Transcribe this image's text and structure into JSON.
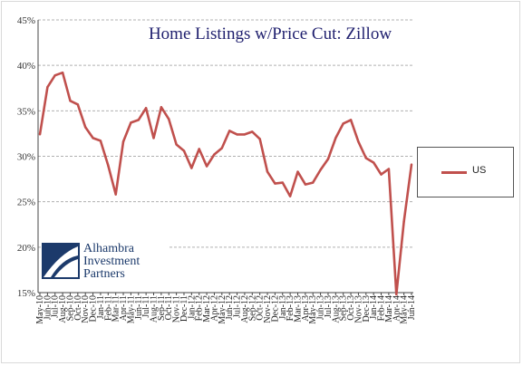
{
  "chart_data": {
    "type": "line",
    "title": "Home Listings w/Price Cut: Zillow",
    "ylim": [
      15,
      45
    ],
    "ytick_labels": [
      "45%",
      "40%",
      "35%",
      "30%",
      "25%",
      "20%",
      "15%"
    ],
    "ytick_values": [
      45,
      40,
      35,
      30,
      25,
      20,
      15
    ],
    "grid": "horizontal dashed",
    "legend_position": "right",
    "categories": [
      "May-10",
      "Jun-10",
      "Jul-10",
      "Aug-10",
      "Sep-10",
      "Oct-10",
      "Nov-10",
      "Dec-10",
      "Jan-11",
      "Feb-11",
      "Mar-11",
      "Apr-11",
      "May-11",
      "Jun-11",
      "Jul-11",
      "Aug-11",
      "Sep-11",
      "Oct-11",
      "Nov-11",
      "Dec-11",
      "Jan-12",
      "Feb-12",
      "Mar-12",
      "Apr-12",
      "May-12",
      "Jun-12",
      "Jul-12",
      "Aug-12",
      "Sep-12",
      "Oct-12",
      "Nov-12",
      "Dec-12",
      "Jan-13",
      "Feb-13",
      "Mar-13",
      "Apr-13",
      "May-13",
      "Jun-13",
      "Jul-13",
      "Aug-13",
      "Sep-13",
      "Oct-13",
      "Nov-13",
      "Dec-13",
      "Jan-14",
      "Feb-14",
      "Mar-14",
      "Apr-14",
      "May-14",
      "Jun-14"
    ],
    "series": [
      {
        "name": "US",
        "color": "#c0504d",
        "values": [
          32.4,
          37.6,
          38.9,
          39.2,
          36.1,
          35.7,
          33.2,
          32.0,
          31.7,
          29.0,
          25.8,
          31.6,
          33.7,
          34.0,
          35.3,
          32.0,
          35.4,
          34.1,
          31.3,
          30.6,
          28.7,
          30.8,
          28.9,
          30.2,
          30.9,
          32.8,
          32.4,
          32.4,
          32.7,
          31.9,
          28.3,
          27.0,
          27.1,
          25.6,
          28.3,
          26.9,
          27.1,
          28.5,
          29.7,
          32.0,
          33.6,
          34.0,
          31.6,
          29.8,
          29.3,
          28.0,
          28.6,
          14.8,
          22.8,
          29.1
        ]
      }
    ]
  },
  "logo": {
    "line1": "Alhambra",
    "line2": "Investment",
    "line3": "Partners"
  }
}
